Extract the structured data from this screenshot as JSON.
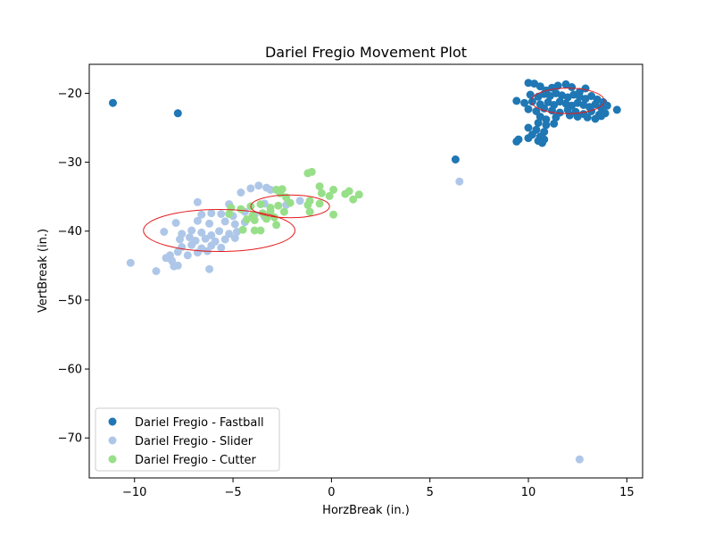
{
  "chart_data": {
    "type": "scatter",
    "title": "Dariel Fregio Movement Plot",
    "xlabel": "HorzBreak (in.)",
    "ylabel": "VertBreak (in.)",
    "xlim": [
      -12.3,
      15.8
    ],
    "ylim": [
      -75.8,
      -15.8
    ],
    "xticks": [
      -10,
      -5,
      0,
      5,
      10,
      15
    ],
    "yticks": [
      -20,
      -30,
      -40,
      -50,
      -60,
      -70
    ],
    "xtick_labels": [
      "−10",
      "−5",
      "0",
      "5",
      "10",
      "15"
    ],
    "ytick_labels": [
      "−20",
      "−30",
      "−40",
      "−50",
      "−60",
      "−70"
    ],
    "grid": false,
    "legend_position": "lower-left",
    "series": [
      {
        "name": "Dariel Fregio - Fastball",
        "color": "#1f77b4",
        "points": [
          [
            -11.1,
            -21.4
          ],
          [
            -7.8,
            -22.9
          ],
          [
            6.3,
            -29.6
          ],
          [
            10.0,
            -18.5
          ],
          [
            10.3,
            -18.6
          ],
          [
            10.6,
            -19.0
          ],
          [
            10.9,
            -19.6
          ],
          [
            11.2,
            -19.2
          ],
          [
            11.5,
            -18.9
          ],
          [
            11.9,
            -18.7
          ],
          [
            12.2,
            -19.1
          ],
          [
            12.6,
            -19.8
          ],
          [
            12.9,
            -19.3
          ],
          [
            10.1,
            -20.2
          ],
          [
            10.5,
            -20.5
          ],
          [
            10.8,
            -20.1
          ],
          [
            11.1,
            -20.4
          ],
          [
            11.4,
            -20.0
          ],
          [
            11.7,
            -20.3
          ],
          [
            12.0,
            -20.6
          ],
          [
            12.3,
            -20.2
          ],
          [
            12.6,
            -20.5
          ],
          [
            12.9,
            -20.8
          ],
          [
            13.2,
            -20.4
          ],
          [
            13.5,
            -20.9
          ],
          [
            13.8,
            -21.3
          ],
          [
            9.4,
            -21.1
          ],
          [
            9.8,
            -21.4
          ],
          [
            10.2,
            -21.2
          ],
          [
            10.6,
            -21.6
          ],
          [
            11.0,
            -21.3
          ],
          [
            11.3,
            -21.7
          ],
          [
            11.6,
            -21.2
          ],
          [
            11.9,
            -21.5
          ],
          [
            12.2,
            -21.8
          ],
          [
            12.5,
            -21.4
          ],
          [
            12.8,
            -21.7
          ],
          [
            13.1,
            -22.0
          ],
          [
            13.4,
            -21.6
          ],
          [
            13.7,
            -22.1
          ],
          [
            14.0,
            -21.8
          ],
          [
            14.5,
            -22.4
          ],
          [
            10.0,
            -22.3
          ],
          [
            10.4,
            -22.6
          ],
          [
            10.8,
            -22.2
          ],
          [
            11.2,
            -22.5
          ],
          [
            11.6,
            -22.8
          ],
          [
            12.0,
            -22.4
          ],
          [
            12.4,
            -22.7
          ],
          [
            12.8,
            -23.0
          ],
          [
            13.2,
            -22.6
          ],
          [
            13.6,
            -23.1
          ],
          [
            13.9,
            -22.9
          ],
          [
            10.6,
            -23.4
          ],
          [
            10.9,
            -23.8
          ],
          [
            11.4,
            -23.5
          ],
          [
            12.1,
            -23.2
          ],
          [
            12.5,
            -23.4
          ],
          [
            13.0,
            -23.5
          ],
          [
            13.4,
            -23.7
          ],
          [
            13.7,
            -23.3
          ],
          [
            10.5,
            -24.3
          ],
          [
            10.9,
            -24.6
          ],
          [
            11.3,
            -24.4
          ],
          [
            10.0,
            -25.0
          ],
          [
            10.4,
            -25.3
          ],
          [
            10.8,
            -25.6
          ],
          [
            10.2,
            -26.0
          ],
          [
            10.6,
            -26.3
          ],
          [
            10.0,
            -26.5
          ],
          [
            10.8,
            -26.7
          ],
          [
            10.5,
            -26.9
          ],
          [
            9.5,
            -26.7
          ],
          [
            9.4,
            -27.0
          ],
          [
            10.7,
            -27.2
          ]
        ]
      },
      {
        "name": "Dariel Fregio - Slider",
        "color": "#aec7e8",
        "points": [
          [
            6.5,
            -32.8
          ],
          [
            12.6,
            -73.1
          ],
          [
            -3.3,
            -33.7
          ],
          [
            -3.7,
            -33.4
          ],
          [
            -4.1,
            -33.8
          ],
          [
            -4.6,
            -34.4
          ],
          [
            -3.1,
            -34.0
          ],
          [
            -6.8,
            -35.8
          ],
          [
            -5.2,
            -36.1
          ],
          [
            -3.4,
            -36.0
          ],
          [
            -2.3,
            -36.2
          ],
          [
            -1.6,
            -35.6
          ],
          [
            -6.6,
            -37.6
          ],
          [
            -6.1,
            -37.4
          ],
          [
            -5.6,
            -37.5
          ],
          [
            -5.0,
            -37.8
          ],
          [
            -4.4,
            -37.2
          ],
          [
            -3.9,
            -37.6
          ],
          [
            -3.4,
            -37.9
          ],
          [
            -7.9,
            -38.8
          ],
          [
            -6.8,
            -38.5
          ],
          [
            -6.2,
            -38.9
          ],
          [
            -5.4,
            -38.6
          ],
          [
            -4.9,
            -39.0
          ],
          [
            -4.4,
            -38.7
          ],
          [
            -8.5,
            -40.1
          ],
          [
            -7.6,
            -40.4
          ],
          [
            -7.1,
            -39.9
          ],
          [
            -6.6,
            -40.2
          ],
          [
            -6.1,
            -40.6
          ],
          [
            -5.7,
            -40.0
          ],
          [
            -5.2,
            -40.4
          ],
          [
            -4.8,
            -40.1
          ],
          [
            -7.7,
            -41.2
          ],
          [
            -7.2,
            -40.9
          ],
          [
            -6.9,
            -41.4
          ],
          [
            -6.4,
            -41.1
          ],
          [
            -5.9,
            -41.5
          ],
          [
            -5.4,
            -41.2
          ],
          [
            -4.9,
            -41.0
          ],
          [
            -7.6,
            -42.3
          ],
          [
            -7.1,
            -42.0
          ],
          [
            -6.6,
            -42.5
          ],
          [
            -6.1,
            -42.1
          ],
          [
            -5.6,
            -42.4
          ],
          [
            -8.2,
            -43.5
          ],
          [
            -7.8,
            -43.0
          ],
          [
            -7.3,
            -43.5
          ],
          [
            -6.8,
            -43.1
          ],
          [
            -6.3,
            -42.9
          ],
          [
            -8.4,
            -43.9
          ],
          [
            -8.1,
            -44.3
          ],
          [
            -10.2,
            -44.6
          ],
          [
            -8.0,
            -45.1
          ],
          [
            -7.8,
            -45.0
          ],
          [
            -6.2,
            -45.5
          ],
          [
            -8.9,
            -45.8
          ]
        ]
      },
      {
        "name": "Dariel Fregio - Cutter",
        "color": "#98df8a",
        "points": [
          [
            -1.0,
            -31.4
          ],
          [
            -1.2,
            -31.6
          ],
          [
            -0.6,
            -33.5
          ],
          [
            0.1,
            -34.0
          ],
          [
            0.7,
            -34.6
          ],
          [
            0.9,
            -34.2
          ],
          [
            1.4,
            -34.7
          ],
          [
            -2.5,
            -33.9
          ],
          [
            -2.6,
            -34.5
          ],
          [
            -2.8,
            -34.0
          ],
          [
            -0.5,
            -34.5
          ],
          [
            -0.1,
            -34.9
          ],
          [
            1.1,
            -35.4
          ],
          [
            -1.1,
            -35.6
          ],
          [
            -2.3,
            -35.1
          ],
          [
            -2.1,
            -35.9
          ],
          [
            -0.6,
            -36.0
          ],
          [
            -1.2,
            -36.2
          ],
          [
            -2.7,
            -36.3
          ],
          [
            -3.1,
            -36.6
          ],
          [
            -3.6,
            -36.1
          ],
          [
            -4.1,
            -36.4
          ],
          [
            -4.6,
            -36.8
          ],
          [
            -5.1,
            -36.6
          ],
          [
            -1.1,
            -37.2
          ],
          [
            -2.4,
            -37.2
          ],
          [
            0.1,
            -37.6
          ],
          [
            -3.1,
            -37.1
          ],
          [
            -3.5,
            -37.4
          ],
          [
            -4.0,
            -37.7
          ],
          [
            -5.2,
            -37.5
          ],
          [
            -2.9,
            -38.0
          ],
          [
            -3.3,
            -38.2
          ],
          [
            -3.9,
            -38.4
          ],
          [
            -4.3,
            -38.3
          ],
          [
            -2.8,
            -39.1
          ],
          [
            -3.6,
            -39.9
          ],
          [
            -4.5,
            -39.8
          ],
          [
            -3.9,
            -39.9
          ]
        ]
      }
    ],
    "ellipses": [
      {
        "series": "Dariel Fregio - Fastball",
        "center": [
          12.0,
          -21.1
        ],
        "rx": 1.85,
        "ry": 1.85,
        "color": "#e41a1c"
      },
      {
        "series": "Dariel Fregio - Slider",
        "center": [
          -5.7,
          -39.9
        ],
        "rx": 3.85,
        "ry": 3.05,
        "color": "#e41a1c"
      },
      {
        "series": "Dariel Fregio - Cutter",
        "center": [
          -2.1,
          -36.4
        ],
        "rx": 2.0,
        "ry": 1.65,
        "color": "#e41a1c"
      }
    ]
  }
}
